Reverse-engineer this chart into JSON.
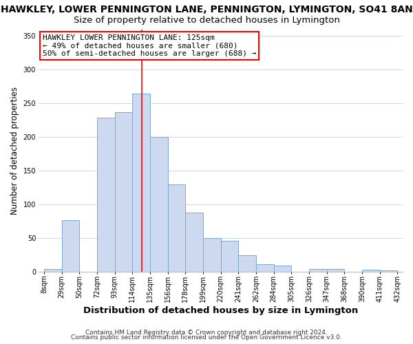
{
  "title": "HAWKLEY, LOWER PENNINGTON LANE, PENNINGTON, LYMINGTON, SO41 8AN",
  "subtitle": "Size of property relative to detached houses in Lymington",
  "xlabel": "Distribution of detached houses by size in Lymington",
  "ylabel": "Number of detached properties",
  "bar_color": "#ccd9ee",
  "bar_edge_color": "#7ba7cf",
  "background_color": "#ffffff",
  "grid_color": "#c8d8ea",
  "bin_labels": [
    "8sqm",
    "29sqm",
    "50sqm",
    "72sqm",
    "93sqm",
    "114sqm",
    "135sqm",
    "156sqm",
    "178sqm",
    "199sqm",
    "220sqm",
    "241sqm",
    "262sqm",
    "284sqm",
    "305sqm",
    "326sqm",
    "347sqm",
    "368sqm",
    "390sqm",
    "411sqm",
    "432sqm"
  ],
  "bar_heights": [
    5,
    77,
    0,
    229,
    237,
    265,
    200,
    130,
    88,
    50,
    46,
    25,
    12,
    10,
    0,
    5,
    5,
    0,
    3,
    2
  ],
  "ylim": [
    0,
    360
  ],
  "yticks": [
    0,
    50,
    100,
    150,
    200,
    250,
    300,
    350
  ],
  "property_label": "HAWKLEY LOWER PENNINGTON LANE: 125sqm",
  "annotation_line1": "← 49% of detached houses are smaller (680)",
  "annotation_line2": "50% of semi-detached houses are larger (688) →",
  "footnote1": "Contains HM Land Registry data © Crown copyright and database right 2024.",
  "footnote2": "Contains public sector information licensed under the Open Government Licence v3.0.",
  "title_fontsize": 10,
  "subtitle_fontsize": 9.5,
  "xlabel_fontsize": 9.5,
  "ylabel_fontsize": 8.5,
  "tick_fontsize": 7,
  "annotation_fontsize": 8,
  "footnote_fontsize": 6.5
}
